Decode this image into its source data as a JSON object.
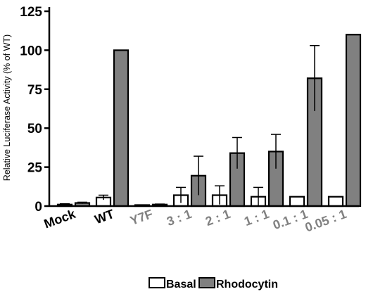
{
  "chart_data": {
    "type": "bar",
    "ylabel": "Relative Luciferase Activity (% of WT)",
    "xlabel": "",
    "ylim": [
      0,
      125
    ],
    "yticks": [
      "0",
      "25",
      "50",
      "75",
      "100",
      "125"
    ],
    "ytick_values": [
      0,
      25,
      50,
      75,
      100,
      125
    ],
    "categories": [
      "Mock",
      "WT",
      "Y7F",
      "3 : 1",
      "2 : 1",
      "1 : 1",
      "0.1 : 1",
      "0.05 : 1"
    ],
    "category_colors": [
      "#000000",
      "#000000",
      "#808080",
      "#808080",
      "#808080",
      "#808080",
      "#808080",
      "#808080"
    ],
    "series": [
      {
        "name": "Basal",
        "color": "#ffffff",
        "values": [
          1,
          5.5,
          0.5,
          7,
          7,
          6,
          6,
          6
        ],
        "errors": [
          0.5,
          1.5,
          0.3,
          5,
          6,
          6,
          0,
          0
        ]
      },
      {
        "name": "Rhodocytin",
        "color": "#808080",
        "values": [
          2,
          100,
          1,
          19.5,
          34,
          35,
          82,
          110
        ],
        "errors": [
          0.5,
          0,
          0.3,
          12.5,
          10,
          11,
          21,
          0
        ]
      }
    ],
    "grid": false,
    "legend_position": "bottom"
  }
}
